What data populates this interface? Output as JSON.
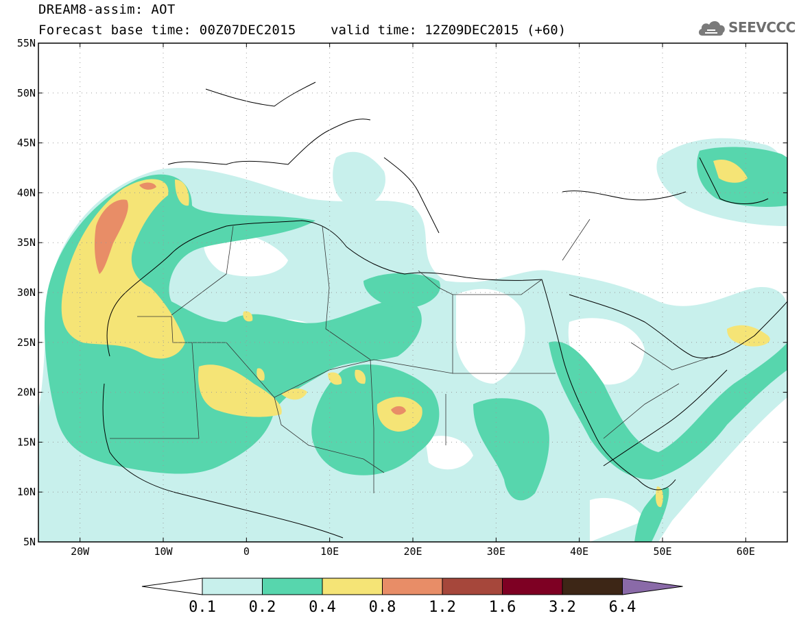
{
  "header": {
    "title": "DREAM8-assim: AOT",
    "base_time": "Forecast base time: 00Z07DEC2015",
    "valid_time": "valid time: 12Z09DEC2015 (+60)",
    "logo_text": "SEEVCCC"
  },
  "map": {
    "lon_range": [
      -25,
      65
    ],
    "lat_range": [
      5,
      55
    ],
    "lat_ticks": [
      {
        "value": 55,
        "label": "55N"
      },
      {
        "value": 50,
        "label": "50N"
      },
      {
        "value": 45,
        "label": "45N"
      },
      {
        "value": 40,
        "label": "40N"
      },
      {
        "value": 35,
        "label": "35N"
      },
      {
        "value": 30,
        "label": "30N"
      },
      {
        "value": 25,
        "label": "25N"
      },
      {
        "value": 20,
        "label": "20N"
      },
      {
        "value": 15,
        "label": "15N"
      },
      {
        "value": 10,
        "label": "10N"
      },
      {
        "value": 5,
        "label": "5N"
      }
    ],
    "lon_ticks": [
      {
        "value": -20,
        "label": "20W"
      },
      {
        "value": -10,
        "label": "10W"
      },
      {
        "value": 0,
        "label": "0"
      },
      {
        "value": 10,
        "label": "10E"
      },
      {
        "value": 20,
        "label": "20E"
      },
      {
        "value": 30,
        "label": "30E"
      },
      {
        "value": 40,
        "label": "40E"
      },
      {
        "value": 50,
        "label": "50E"
      },
      {
        "value": 60,
        "label": "60E"
      }
    ],
    "gridlines": "dotted"
  },
  "colorbar": {
    "labels": [
      "0.1",
      "0.2",
      "0.4",
      "0.8",
      "1.2",
      "1.6",
      "3.2",
      "6.4"
    ],
    "colors": [
      "#ffffff",
      "#c8f0ec",
      "#57d6ad",
      "#f5e476",
      "#e88d67",
      "#a6473b",
      "#7e0023",
      "#3d2616",
      "#8a6aa8"
    ]
  }
}
